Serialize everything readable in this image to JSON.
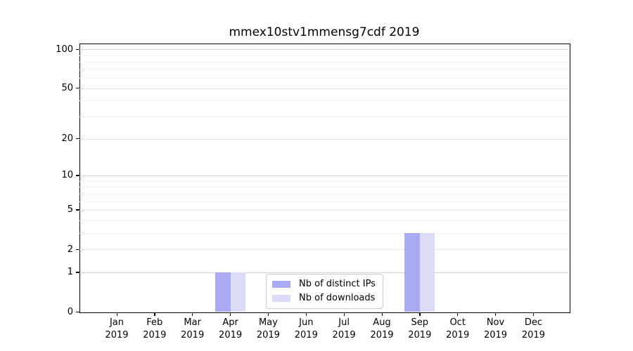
{
  "title": "mmex10stv1mmensg7cdf 2019",
  "chart_data": {
    "type": "bar",
    "title": "mmex10stv1mmensg7cdf 2019",
    "categories": [
      "Jan 2019",
      "Feb 2019",
      "Mar 2019",
      "Apr 2019",
      "May 2019",
      "Jun 2019",
      "Jul 2019",
      "Aug 2019",
      "Sep 2019",
      "Oct 2019",
      "Nov 2019",
      "Dec 2019"
    ],
    "series": [
      {
        "name": "Nb of distinct IPs",
        "color": "#a9a9f4",
        "values": [
          0,
          0,
          0,
          1,
          0,
          0,
          0,
          0,
          3,
          0,
          0,
          0
        ]
      },
      {
        "name": "Nb of downloads",
        "color": "#dcdcf8",
        "values": [
          0,
          0,
          0,
          1,
          0,
          0,
          0,
          0,
          3,
          0,
          0,
          0
        ]
      }
    ],
    "xlabel": "",
    "ylabel": "",
    "y_scale": "log1p",
    "ylim": [
      0,
      111
    ],
    "y_ticks_labeled": [
      0,
      1,
      2,
      5,
      10,
      20,
      50,
      100
    ],
    "y_gridlines_major": [
      1,
      10,
      100
    ],
    "y_gridlines_mid": [
      2,
      5,
      20,
      50
    ],
    "y_gridlines_minor": [
      3,
      4,
      6,
      7,
      8,
      9,
      30,
      40,
      60,
      70,
      80,
      90
    ],
    "grid": true,
    "legend_position": "lower center"
  },
  "colors": {
    "grid_major": "#d3d3d3",
    "grid_mid": "#e4e4e4",
    "grid_minor": "#f1f1f1",
    "axis": "#000000",
    "legend_border": "#cccccc",
    "background": "#ffffff"
  }
}
